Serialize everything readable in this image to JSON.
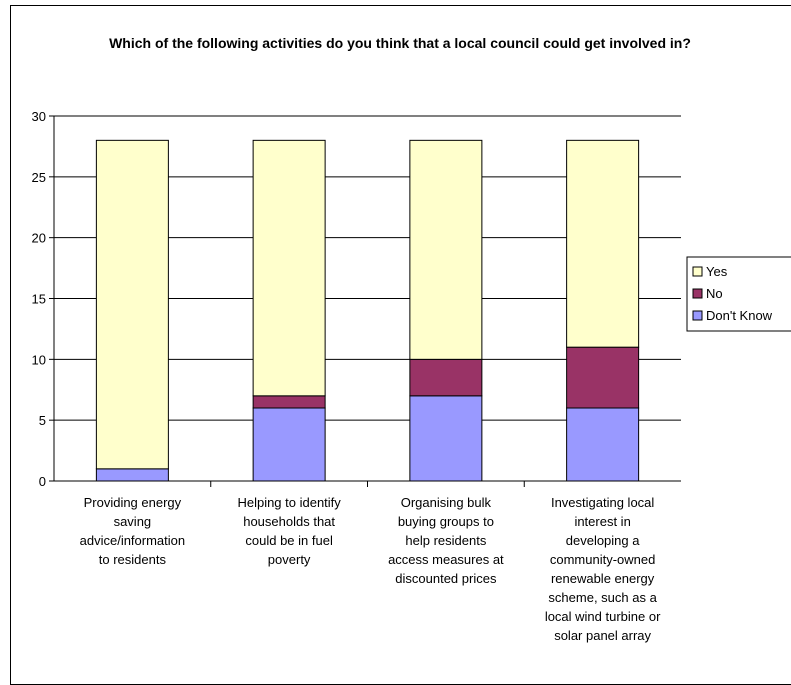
{
  "chart_data": {
    "type": "bar",
    "stacked": true,
    "title": "Which of the following activities do you think that a local council could get involved in?",
    "categories": [
      [
        "Providing energy",
        "saving",
        "advice/information",
        "to residents"
      ],
      [
        "Helping to identify",
        "households that",
        "could be in fuel",
        "poverty"
      ],
      [
        "Organising bulk",
        "buying groups to",
        "help residents",
        "access measures at",
        "discounted prices"
      ],
      [
        "Investigating local",
        "interest in",
        "developing a",
        "community-owned",
        "renewable energy",
        "scheme, such as a",
        "local wind turbine or",
        "solar panel array"
      ]
    ],
    "series": [
      {
        "name": "Don't Know",
        "color": "#9999FF",
        "values": [
          1,
          6,
          7,
          6
        ]
      },
      {
        "name": "No",
        "color": "#993366",
        "values": [
          0,
          1,
          3,
          5
        ]
      },
      {
        "name": "Yes",
        "color": "#FFFFCC",
        "values": [
          27,
          21,
          18,
          17
        ]
      }
    ],
    "ylim": [
      0,
      30
    ],
    "yticks": [
      0,
      5,
      10,
      15,
      20,
      25,
      30
    ],
    "grid": true,
    "legend": {
      "position": "right",
      "order": [
        "Yes",
        "No",
        "Don't Know"
      ]
    }
  }
}
